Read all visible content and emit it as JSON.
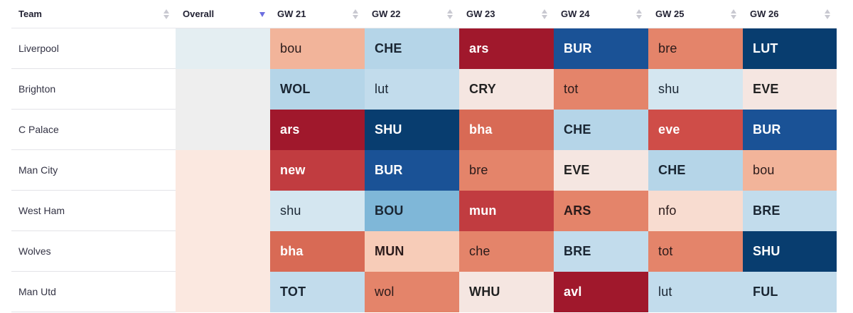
{
  "header": {
    "team_label": "Team",
    "overall_label": "Overall",
    "gameweeks": [
      "GW 21",
      "GW 22",
      "GW 23",
      "GW 24",
      "GW 25",
      "GW 26"
    ]
  },
  "colors": {
    "very_easy": "#083d6f",
    "easy": "#1a5296",
    "fairly_easy": "#7fb7d8",
    "light_easy": "#b5d5e8",
    "neutral_easy": "#d4e6f0",
    "neutral": "#f5e6e1",
    "light_hard": "#f7ccb8",
    "fairly_hard": "#f2ad90",
    "medium_hard": "#e4846a",
    "hard": "#d86a55",
    "very_hard": "#c13c40",
    "hardest": "#a0182c",
    "overall_cool": "#e4eef2",
    "overall_neutral": "#eeeeee",
    "overall_warm": "#fbe8e0"
  },
  "rows": [
    {
      "team": "Liverpool",
      "overall_color": "#e4eef2",
      "fixtures": [
        {
          "opp": "bou",
          "bg": "#f2b49a",
          "fg": "#2a1a1a"
        },
        {
          "opp": "CHE",
          "bg": "#b5d5e8",
          "fg": "#1a2633"
        },
        {
          "opp": "ars",
          "bg": "#a0182c",
          "fg": "#ffffff"
        },
        {
          "opp": "BUR",
          "bg": "#1a5296",
          "fg": "#ffffff"
        },
        {
          "opp": "bre",
          "bg": "#e4846a",
          "fg": "#2a1a1a"
        },
        {
          "opp": "LUT",
          "bg": "#083d6f",
          "fg": "#ffffff"
        }
      ]
    },
    {
      "team": "Brighton",
      "overall_color": "#eeeeee",
      "fixtures": [
        {
          "opp": "WOL",
          "bg": "#b5d5e8",
          "fg": "#1a2633"
        },
        {
          "opp": "lut",
          "bg": "#c2dcec",
          "fg": "#1a2633"
        },
        {
          "opp": "CRY",
          "bg": "#f5e6e1",
          "fg": "#222222"
        },
        {
          "opp": "tot",
          "bg": "#e4846a",
          "fg": "#2a1a1a"
        },
        {
          "opp": "shu",
          "bg": "#d4e6f0",
          "fg": "#1a2633"
        },
        {
          "opp": "EVE",
          "bg": "#f5e6e1",
          "fg": "#222222"
        }
      ]
    },
    {
      "team": "C Palace",
      "overall_color": "#eeeeee",
      "fixtures": [
        {
          "opp": "ars",
          "bg": "#a0182c",
          "fg": "#ffffff"
        },
        {
          "opp": "SHU",
          "bg": "#083d6f",
          "fg": "#ffffff"
        },
        {
          "opp": "bha",
          "bg": "#d86a55",
          "fg": "#ffffff"
        },
        {
          "opp": "CHE",
          "bg": "#b5d5e8",
          "fg": "#1a2633"
        },
        {
          "opp": "eve",
          "bg": "#cf4d48",
          "fg": "#ffffff"
        },
        {
          "opp": "BUR",
          "bg": "#1a5296",
          "fg": "#ffffff"
        }
      ]
    },
    {
      "team": "Man City",
      "overall_color": "#fbe8e0",
      "fixtures": [
        {
          "opp": "new",
          "bg": "#c13c40",
          "fg": "#ffffff"
        },
        {
          "opp": "BUR",
          "bg": "#1a5296",
          "fg": "#ffffff"
        },
        {
          "opp": "bre",
          "bg": "#e4846a",
          "fg": "#2a1a1a"
        },
        {
          "opp": "EVE",
          "bg": "#f5e6e1",
          "fg": "#222222"
        },
        {
          "opp": "CHE",
          "bg": "#b5d5e8",
          "fg": "#1a2633"
        },
        {
          "opp": "bou",
          "bg": "#f2b49a",
          "fg": "#2a1a1a"
        }
      ]
    },
    {
      "team": "West Ham",
      "overall_color": "#fbe8e0",
      "fixtures": [
        {
          "opp": "shu",
          "bg": "#d4e6f0",
          "fg": "#1a2633"
        },
        {
          "opp": "BOU",
          "bg": "#7fb7d8",
          "fg": "#1a2633"
        },
        {
          "opp": "mun",
          "bg": "#c13c40",
          "fg": "#ffffff"
        },
        {
          "opp": "ARS",
          "bg": "#e4846a",
          "fg": "#2a1a1a"
        },
        {
          "opp": "nfo",
          "bg": "#f8dcd0",
          "fg": "#2a1a1a"
        },
        {
          "opp": "BRE",
          "bg": "#c2dcec",
          "fg": "#1a2633"
        }
      ]
    },
    {
      "team": "Wolves",
      "overall_color": "#fbe8e0",
      "fixtures": [
        {
          "opp": "bha",
          "bg": "#d86a55",
          "fg": "#ffffff"
        },
        {
          "opp": "MUN",
          "bg": "#f7ccb8",
          "fg": "#2a1a1a"
        },
        {
          "opp": "che",
          "bg": "#e4846a",
          "fg": "#2a1a1a"
        },
        {
          "opp": "BRE",
          "bg": "#c2dcec",
          "fg": "#1a2633"
        },
        {
          "opp": "tot",
          "bg": "#e4846a",
          "fg": "#2a1a1a"
        },
        {
          "opp": "SHU",
          "bg": "#083d6f",
          "fg": "#ffffff"
        }
      ]
    },
    {
      "team": "Man Utd",
      "overall_color": "#fbe8e0",
      "fixtures": [
        {
          "opp": "TOT",
          "bg": "#c2dcec",
          "fg": "#1a2633"
        },
        {
          "opp": "wol",
          "bg": "#e4846a",
          "fg": "#2a1a1a"
        },
        {
          "opp": "WHU",
          "bg": "#f5e6e1",
          "fg": "#222222"
        },
        {
          "opp": "avl",
          "bg": "#a0182c",
          "fg": "#ffffff"
        },
        {
          "opp": "lut",
          "bg": "#c2dcec",
          "fg": "#1a2633"
        },
        {
          "opp": "FUL",
          "bg": "#c2dcec",
          "fg": "#1a2633"
        }
      ]
    }
  ]
}
